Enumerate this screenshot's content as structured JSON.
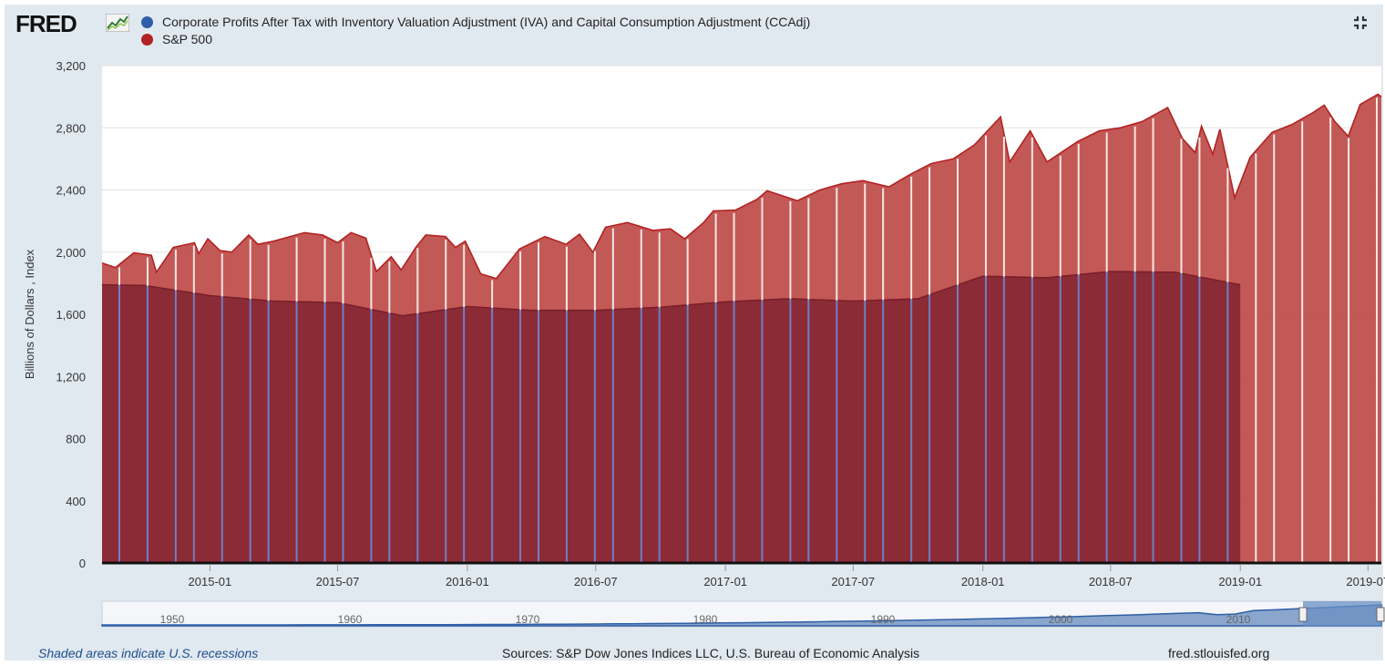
{
  "app": {
    "logo_text": "FRED"
  },
  "legend": [
    {
      "label": "Corporate Profits After Tax with Inventory Valuation Adjustment (IVA) and Capital Consumption Adjustment (CCAdj)",
      "color": "#2f5fa8"
    },
    {
      "label": "S&P 500",
      "color": "#b22222"
    }
  ],
  "footer": {
    "recession_note": "Shaded areas indicate U.S. recessions",
    "sources": "Sources: S&P Dow Jones Indices LLC, U.S. Bureau of Economic Analysis",
    "site": "fred.stlouisfed.org"
  },
  "chart_data": {
    "type": "area",
    "ylabel": "Billions of Dollars , Index",
    "ylim": [
      0,
      3200
    ],
    "yticks": [
      0,
      400,
      800,
      1200,
      1600,
      2000,
      2400,
      2800,
      3200
    ],
    "ytick_labels": [
      "0",
      "400",
      "800",
      "1,200",
      "1,600",
      "2,000",
      "2,400",
      "2,800",
      "3,200"
    ],
    "xlim": [
      "2014-08-01",
      "2019-07-20"
    ],
    "xticks": [
      {
        "date": "2015-01-01",
        "label": "2015-01"
      },
      {
        "date": "2015-07-01",
        "label": "2015-07"
      },
      {
        "date": "2016-01-01",
        "label": "2016-01"
      },
      {
        "date": "2016-07-01",
        "label": "2016-07"
      },
      {
        "date": "2017-01-01",
        "label": "2017-01"
      },
      {
        "date": "2017-07-01",
        "label": "2017-07"
      },
      {
        "date": "2018-01-01",
        "label": "2018-01"
      },
      {
        "date": "2018-07-01",
        "label": "2018-07"
      },
      {
        "date": "2019-01-01",
        "label": "2019-01"
      },
      {
        "date": "2019-07-01",
        "label": "2019-07"
      }
    ],
    "grid": true,
    "legend_position": "top-left",
    "series": [
      {
        "name": "S&P 500",
        "color": "#b22222",
        "fill": "#c0504d",
        "points": [
          [
            "2014-08-01",
            1930
          ],
          [
            "2014-08-20",
            1900
          ],
          [
            "2014-09-15",
            1995
          ],
          [
            "2014-10-10",
            1980
          ],
          [
            "2014-10-17",
            1870
          ],
          [
            "2014-11-10",
            2030
          ],
          [
            "2014-12-10",
            2060
          ],
          [
            "2014-12-16",
            1990
          ],
          [
            "2014-12-29",
            2085
          ],
          [
            "2015-01-15",
            2010
          ],
          [
            "2015-02-01",
            2000
          ],
          [
            "2015-02-25",
            2110
          ],
          [
            "2015-03-10",
            2050
          ],
          [
            "2015-04-01",
            2070
          ],
          [
            "2015-05-15",
            2125
          ],
          [
            "2015-06-10",
            2110
          ],
          [
            "2015-07-01",
            2060
          ],
          [
            "2015-07-20",
            2125
          ],
          [
            "2015-08-10",
            2090
          ],
          [
            "2015-08-25",
            1875
          ],
          [
            "2015-09-15",
            1970
          ],
          [
            "2015-09-29",
            1885
          ],
          [
            "2015-10-20",
            2030
          ],
          [
            "2015-11-03",
            2110
          ],
          [
            "2015-12-01",
            2100
          ],
          [
            "2015-12-15",
            2030
          ],
          [
            "2015-12-29",
            2070
          ],
          [
            "2016-01-20",
            1860
          ],
          [
            "2016-02-11",
            1830
          ],
          [
            "2016-03-15",
            2020
          ],
          [
            "2016-04-20",
            2100
          ],
          [
            "2016-05-20",
            2050
          ],
          [
            "2016-06-08",
            2115
          ],
          [
            "2016-06-27",
            2000
          ],
          [
            "2016-07-15",
            2160
          ],
          [
            "2016-08-15",
            2190
          ],
          [
            "2016-09-20",
            2140
          ],
          [
            "2016-10-15",
            2150
          ],
          [
            "2016-11-04",
            2085
          ],
          [
            "2016-12-01",
            2190
          ],
          [
            "2016-12-15",
            2265
          ],
          [
            "2017-01-15",
            2270
          ],
          [
            "2017-02-15",
            2340
          ],
          [
            "2017-03-01",
            2395
          ],
          [
            "2017-04-13",
            2330
          ],
          [
            "2017-05-15",
            2400
          ],
          [
            "2017-06-15",
            2440
          ],
          [
            "2017-07-15",
            2460
          ],
          [
            "2017-08-21",
            2420
          ],
          [
            "2017-09-20",
            2500
          ],
          [
            "2017-10-20",
            2570
          ],
          [
            "2017-11-20",
            2600
          ],
          [
            "2017-12-20",
            2690
          ],
          [
            "2018-01-26",
            2870
          ],
          [
            "2018-02-08",
            2580
          ],
          [
            "2018-03-09",
            2780
          ],
          [
            "2018-04-02",
            2580
          ],
          [
            "2018-05-15",
            2710
          ],
          [
            "2018-06-15",
            2780
          ],
          [
            "2018-07-15",
            2800
          ],
          [
            "2018-08-15",
            2840
          ],
          [
            "2018-09-20",
            2930
          ],
          [
            "2018-10-11",
            2730
          ],
          [
            "2018-10-29",
            2640
          ],
          [
            "2018-11-07",
            2810
          ],
          [
            "2018-11-23",
            2630
          ],
          [
            "2018-12-03",
            2790
          ],
          [
            "2018-12-24",
            2350
          ],
          [
            "2019-01-15",
            2610
          ],
          [
            "2019-02-15",
            2770
          ],
          [
            "2019-03-15",
            2820
          ],
          [
            "2019-04-15",
            2900
          ],
          [
            "2019-04-30",
            2945
          ],
          [
            "2019-05-15",
            2840
          ],
          [
            "2019-06-03",
            2745
          ],
          [
            "2019-06-20",
            2950
          ],
          [
            "2019-07-15",
            3015
          ],
          [
            "2019-07-20",
            3000
          ]
        ]
      },
      {
        "name": "Corporate Profits After Tax with Inventory Valuation Adjustment (IVA) and Capital Consumption Adjustment (CCAdj)",
        "color": "#7a1f2a",
        "fill": "#8b2b36",
        "points": [
          [
            "2014-08-01",
            1790
          ],
          [
            "2014-10-01",
            1785
          ],
          [
            "2015-01-01",
            1720
          ],
          [
            "2015-04-01",
            1685
          ],
          [
            "2015-07-01",
            1675
          ],
          [
            "2015-10-01",
            1590
          ],
          [
            "2016-01-01",
            1650
          ],
          [
            "2016-04-01",
            1625
          ],
          [
            "2016-07-01",
            1625
          ],
          [
            "2016-10-01",
            1645
          ],
          [
            "2017-01-01",
            1680
          ],
          [
            "2017-04-01",
            1700
          ],
          [
            "2017-07-01",
            1685
          ],
          [
            "2017-10-01",
            1700
          ],
          [
            "2018-01-01",
            1845
          ],
          [
            "2018-04-01",
            1835
          ],
          [
            "2018-07-01",
            1875
          ],
          [
            "2018-10-01",
            1870
          ],
          [
            "2019-01-01",
            1790
          ]
        ]
      }
    ],
    "navigator": {
      "labels": [
        "1950",
        "1960",
        "1970",
        "1980",
        "1990",
        "2000",
        "2010"
      ]
    }
  }
}
